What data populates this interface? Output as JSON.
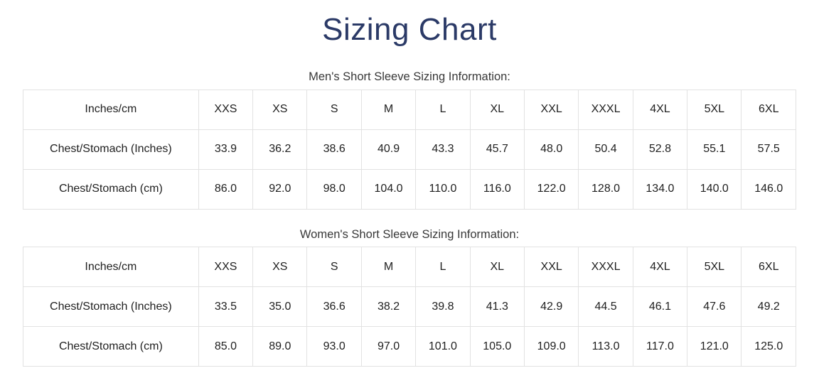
{
  "page": {
    "title": "Sizing Chart"
  },
  "colors": {
    "title": "#2b3a67",
    "caption_text": "#383838",
    "cell_text": "#212121",
    "table_border": "#e2e2e2",
    "background": "#ffffff"
  },
  "tables": [
    {
      "caption": "Men's Short Sleeve Sizing Information:",
      "header": [
        "Inches/cm",
        "XXS",
        "XS",
        "S",
        "M",
        "L",
        "XL",
        "XXL",
        "XXXL",
        "4XL",
        "5XL",
        "6XL"
      ],
      "rows": [
        {
          "label": "Chest/Stomach (Inches)",
          "values": [
            "33.9",
            "36.2",
            "38.6",
            "40.9",
            "43.3",
            "45.7",
            "48.0",
            "50.4",
            "52.8",
            "55.1",
            "57.5"
          ]
        },
        {
          "label": "Chest/Stomach (cm)",
          "values": [
            "86.0",
            "92.0",
            "98.0",
            "104.0",
            "110.0",
            "116.0",
            "122.0",
            "128.0",
            "134.0",
            "140.0",
            "146.0"
          ]
        }
      ]
    },
    {
      "caption": "Women's Short Sleeve Sizing Information:",
      "header": [
        "Inches/cm",
        "XXS",
        "XS",
        "S",
        "M",
        "L",
        "XL",
        "XXL",
        "XXXL",
        "4XL",
        "5XL",
        "6XL"
      ],
      "rows": [
        {
          "label": "Chest/Stomach (Inches)",
          "values": [
            "33.5",
            "35.0",
            "36.6",
            "38.2",
            "39.8",
            "41.3",
            "42.9",
            "44.5",
            "46.1",
            "47.6",
            "49.2"
          ]
        },
        {
          "label": "Chest/Stomach (cm)",
          "values": [
            "85.0",
            "89.0",
            "93.0",
            "97.0",
            "101.0",
            "105.0",
            "109.0",
            "113.0",
            "117.0",
            "121.0",
            "125.0"
          ]
        }
      ]
    }
  ]
}
